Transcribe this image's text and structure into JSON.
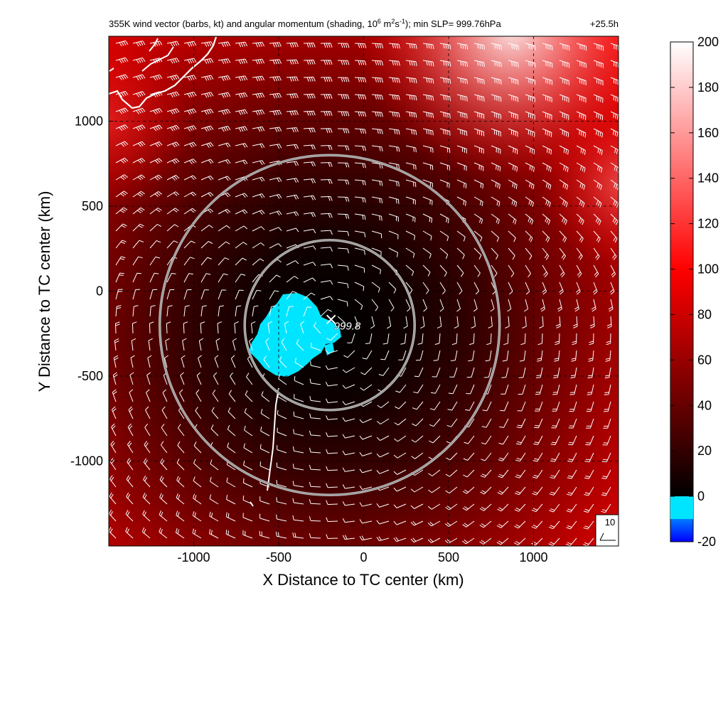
{
  "chart_data": {
    "type": "heatmap",
    "title_main": "355K wind vector (barbs, kt) and angular momentum (shading, 10",
    "title_exp1": "6",
    "title_unit_a": " m",
    "title_exp2": "2",
    "title_unit_b": "s",
    "title_exp3": "-1",
    "title_tail": "); min SLP= 999.76hPa",
    "time_label": "+25.5h",
    "xlabel": "X Distance to TC center (km)",
    "ylabel": "Y Distance to TC center (km)",
    "xlim": [
      -1500,
      1500
    ],
    "ylim": [
      -1500,
      1500
    ],
    "xticks": [
      -1000,
      -500,
      0,
      500,
      1000
    ],
    "yticks": [
      -1000,
      -500,
      0,
      500,
      1000
    ],
    "xtick_labels": [
      "-1000",
      "-500",
      "0",
      "500",
      "1000"
    ],
    "ytick_labels": [
      "-1000",
      "-500",
      "0",
      "500",
      "1000"
    ],
    "grid": true,
    "colorbar": {
      "min": -20,
      "max": 200,
      "ticks": [
        200,
        180,
        160,
        140,
        120,
        100,
        80,
        60,
        40,
        20,
        0,
        -20
      ],
      "tick_labels": [
        "200",
        "180",
        "160",
        "140",
        "120",
        "100",
        "80",
        "60",
        "40",
        "20",
        "0",
        "-20"
      ],
      "colors": {
        "neg_low": "#0000ff",
        "neg_high": "#00e5ff",
        "zero": "#000000",
        "mid": "#ff0000",
        "high": "#ffffff"
      }
    },
    "tc_center": {
      "x": -200,
      "y": -200,
      "label": "999.8"
    },
    "circles_km": [
      {
        "center_x": -200,
        "center_y": -200,
        "radius": 500
      },
      {
        "center_x": -200,
        "center_y": -200,
        "radius": 1000
      }
    ],
    "reference_barb": {
      "label": "10"
    }
  }
}
